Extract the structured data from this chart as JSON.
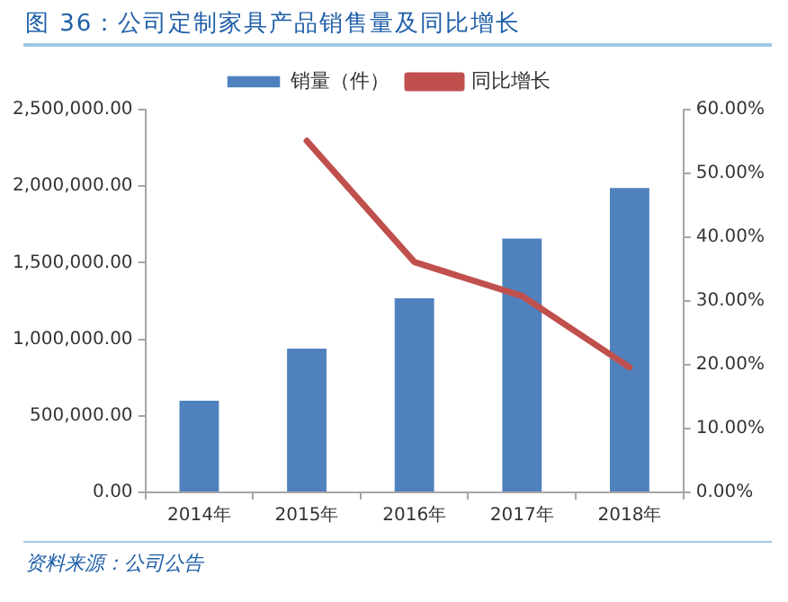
{
  "chart_data": {
    "type": "bar",
    "title": "图 36：公司定制家具产品销售量及同比增长",
    "categories": [
      "2014年",
      "2015年",
      "2016年",
      "2017年",
      "2018年"
    ],
    "series": [
      {
        "name": "销量（件）",
        "color": "#4f81bd",
        "values": [
          610000,
          950000,
          1280000,
          1670000,
          2000000
        ]
      },
      {
        "name": "同比增长",
        "type": "line",
        "axis": "y2",
        "color": "#c0504d",
        "values": [
          null,
          55.1,
          36.1,
          30.8,
          19.6
        ]
      }
    ],
    "ylim": [
      0,
      2500000
    ],
    "yticks": [
      {
        "value": 0,
        "label": "0.00"
      },
      {
        "value": 500000,
        "label": "500,000.00"
      },
      {
        "value": 1000000,
        "label": "1,000,000.00"
      },
      {
        "value": 1500000,
        "label": "1,500,000.00"
      },
      {
        "value": 2000000,
        "label": "2,000,000.00"
      },
      {
        "value": 2500000,
        "label": "2,500,000.00"
      }
    ],
    "y2lim": [
      0,
      60
    ],
    "y2ticks": [
      {
        "value": 0,
        "label": "0.00%"
      },
      {
        "value": 10,
        "label": "10.00%"
      },
      {
        "value": 20,
        "label": "20.00%"
      },
      {
        "value": 30,
        "label": "30.00%"
      },
      {
        "value": 40,
        "label": "40.00%"
      },
      {
        "value": 50,
        "label": "50.00%"
      },
      {
        "value": 60,
        "label": "60.00%"
      }
    ],
    "legend": "top",
    "marker": "none",
    "annotations": [
      "资料来源：公司公告"
    ]
  }
}
